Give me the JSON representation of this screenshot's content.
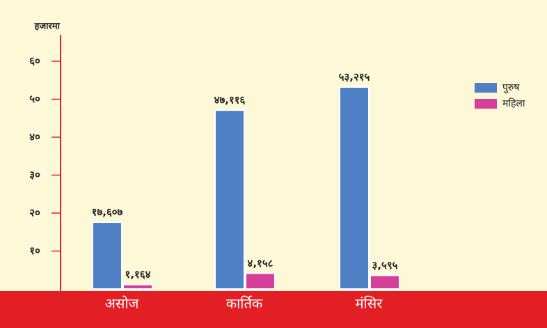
{
  "chart_data": {
    "type": "bar",
    "y_axis_label": "हजारमा",
    "categories": [
      "असोज",
      "कार्तिक",
      "मंसिर"
    ],
    "series": [
      {
        "name": "पुरुष",
        "color": "#4f7fc4",
        "values": [
          17.607,
          47.116,
          53.215
        ],
        "value_labels": [
          "१७,६०७",
          "४७,११६",
          "५३,२१५"
        ]
      },
      {
        "name": "महिला",
        "color": "#d63f98",
        "values": [
          1.164,
          4.158,
          3.595
        ],
        "value_labels": [
          "१,१६४",
          "४,१५८",
          "३,५९५"
        ]
      }
    ],
    "ylim": [
      0,
      65
    ],
    "yticks": [
      {
        "value": 10,
        "label": "१०"
      },
      {
        "value": 20,
        "label": "२०"
      },
      {
        "value": 30,
        "label": "३०"
      },
      {
        "value": 40,
        "label": "४०"
      },
      {
        "value": 50,
        "label": "५०"
      },
      {
        "value": 60,
        "label": "६०"
      }
    ],
    "legend": "top-right"
  }
}
